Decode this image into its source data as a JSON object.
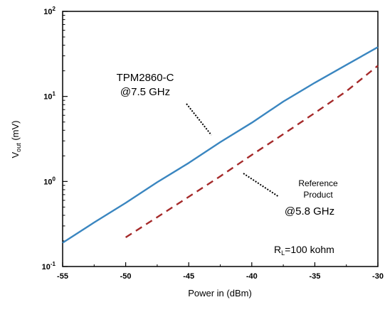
{
  "chart_data": {
    "type": "line",
    "xlabel": "Power in (dBm)",
    "ylabel_main": "V",
    "ylabel_sub": "out",
    "ylabel_unit": " (mV)",
    "xlim": [
      -55,
      -30
    ],
    "ylim": [
      0.1,
      100
    ],
    "y_scale": "log",
    "grid": false,
    "x_ticks": [
      {
        "value": -55,
        "label": "-55"
      },
      {
        "value": -50,
        "label": "-50"
      },
      {
        "value": -45,
        "label": "-45"
      },
      {
        "value": -40,
        "label": "-40"
      },
      {
        "value": -35,
        "label": "-35"
      },
      {
        "value": -30,
        "label": "-30"
      }
    ],
    "y_ticks": [
      {
        "value": 0.1,
        "base": "10",
        "exp": "-1"
      },
      {
        "value": 1,
        "base": "10",
        "exp": "0"
      },
      {
        "value": 10,
        "base": "10",
        "exp": "1"
      },
      {
        "value": 100,
        "base": "10",
        "exp": "2"
      }
    ],
    "series": [
      {
        "color": "#3a86c0",
        "style": "solid",
        "x": [
          -55,
          -52.5,
          -50,
          -47.5,
          -45,
          -42.5,
          -40,
          -37.5,
          -35,
          -32.5,
          -30
        ],
        "y": [
          0.19,
          0.33,
          0.56,
          0.98,
          1.65,
          2.9,
          4.9,
          8.7,
          14.5,
          23.5,
          38
        ]
      },
      {
        "color": "#a52a2a",
        "style": "dashed",
        "x": [
          -50,
          -47.5,
          -45,
          -42.5,
          -40,
          -37.5,
          -35,
          -32.5,
          -30
        ],
        "y": [
          0.22,
          0.38,
          0.66,
          1.15,
          2.05,
          3.6,
          6.4,
          11.5,
          23
        ]
      }
    ],
    "annotations": {
      "tpm_line1": "TPM2860-C",
      "tpm_line2": "@7.5 GHz",
      "ref_line1": "Reference",
      "ref_line2": "Product",
      "ref_line3": "@5.8 GHz",
      "rl_main": "R",
      "rl_sub": "L",
      "rl_rest": "=100 kohm"
    }
  }
}
